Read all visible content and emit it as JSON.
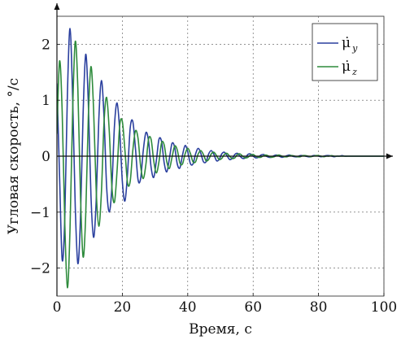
{
  "chart_data": {
    "type": "line",
    "xlabel": "Время, с",
    "ylabel": "Угловая скорость, °/с",
    "xlim": [
      0,
      100
    ],
    "ylim": [
      -2.5,
      2.5
    ],
    "x_ticks": [
      0,
      20,
      40,
      60,
      80,
      100
    ],
    "y_ticks": [
      -2,
      -1,
      0,
      1,
      2
    ],
    "x_tick_labels": [
      "0",
      "20",
      "40",
      "60",
      "80",
      "100"
    ],
    "y_tick_labels": [
      "−2",
      "−1",
      "0",
      "1",
      "2"
    ],
    "grid": true,
    "legend_position": "top-right",
    "series": [
      {
        "name": "μ̇ y",
        "legend_base": "μ̇",
        "legend_sub": "y",
        "color": "#2a3f9e",
        "x": [
          0,
          0.8,
          1.6,
          2.4,
          3.2,
          4.0,
          4.8,
          5.6,
          6.4,
          7.2,
          8.0,
          8.8,
          9.6,
          10.4,
          11.2,
          12.0,
          12.8,
          13.6,
          14.4,
          15.2,
          16.0,
          16.8,
          17.6,
          18.4,
          19.2,
          20.0,
          20.8,
          21.6,
          22.4,
          23.2,
          24.0,
          24.8,
          25.6,
          26.4,
          27.2,
          28.0,
          28.8,
          29.6,
          30.4,
          31.2,
          32.0,
          32.8,
          33.6,
          34.4,
          35.2,
          36.0,
          36.8,
          37.6,
          38.4,
          39.2,
          40.0,
          40.8,
          41.6,
          42.4,
          43.2,
          44.0,
          44.8,
          45.6,
          46.4,
          47.2,
          48.0,
          48.8,
          49.6,
          50.4,
          51.2,
          52.0,
          52.8,
          53.6,
          54.4,
          55.2,
          56.0,
          56.8,
          57.6,
          58.4,
          59.2,
          60.0,
          60.8,
          61.6,
          62.4,
          63.2,
          64.0,
          64.8,
          65.6,
          66.4,
          67.2,
          68.0,
          68.8,
          69.6,
          70.4,
          71.2,
          72.0,
          72.8,
          73.6,
          74.4,
          75.2,
          76.0,
          76.8,
          77.6,
          78.4,
          79.2,
          80.0,
          80.8,
          81.6,
          82.4,
          83.2,
          84.0,
          84.8,
          85.6,
          86.4,
          87.2,
          88.0,
          88.8,
          89.6,
          90.4,
          91.2,
          92.0,
          92.8,
          93.6,
          94.4,
          95.2,
          96.0,
          96.8,
          97.6,
          98.4,
          99.2,
          100.0
        ],
        "y": [
          1.3,
          -0.35,
          -1.85,
          -1.1,
          1.1,
          2.28,
          1.05,
          -0.9,
          -1.92,
          -1.1,
          0.75,
          1.82,
          0.95,
          -0.7,
          -1.45,
          -0.8,
          0.65,
          1.35,
          0.7,
          -0.55,
          -1.0,
          -0.55,
          0.55,
          0.95,
          0.45,
          -0.45,
          -0.8,
          -0.3,
          0.5,
          0.62,
          0.15,
          -0.42,
          -0.4,
          0.1,
          0.42,
          0.28,
          -0.2,
          -0.38,
          -0.08,
          0.3,
          0.26,
          -0.12,
          -0.28,
          -0.04,
          0.23,
          0.16,
          -0.14,
          -0.21,
          0.02,
          0.19,
          0.08,
          -0.13,
          -0.14,
          0.04,
          0.14,
          0.05,
          -0.1,
          -0.1,
          0.04,
          0.1,
          0.03,
          -0.08,
          -0.06,
          0.04,
          0.07,
          0.01,
          -0.06,
          -0.04,
          0.03,
          0.05,
          0.0,
          -0.04,
          -0.03,
          0.03,
          0.04,
          0.0,
          -0.03,
          -0.02,
          0.02,
          0.03,
          0.0,
          -0.02,
          -0.02,
          0.01,
          0.02,
          0.0,
          -0.02,
          -0.01,
          0.01,
          0.02,
          0.0,
          -0.01,
          -0.01,
          0.01,
          0.01,
          0.0,
          -0.01,
          -0.01,
          0.01,
          0.01,
          0.0,
          -0.01,
          0.0,
          0.01,
          0.01,
          0.0,
          -0.01,
          0.0,
          0.0,
          0.01,
          0.0,
          0.0,
          0.0,
          0.0,
          0.0,
          0.0,
          0.0,
          0.0,
          0.0,
          0.0,
          0.0,
          0.0,
          0.0,
          0.0,
          0.0,
          0.0
        ]
      },
      {
        "name": "μ̇ z",
        "legend_base": "μ̇",
        "legend_sub": "z",
        "color": "#2e8b3c",
        "x": [
          0,
          0.8,
          1.6,
          2.4,
          3.2,
          4.0,
          4.8,
          5.6,
          6.4,
          7.2,
          8.0,
          8.8,
          9.6,
          10.4,
          11.2,
          12.0,
          12.8,
          13.6,
          14.4,
          15.2,
          16.0,
          16.8,
          17.6,
          18.4,
          19.2,
          20.0,
          20.8,
          21.6,
          22.4,
          23.2,
          24.0,
          24.8,
          25.6,
          26.4,
          27.2,
          28.0,
          28.8,
          29.6,
          30.4,
          31.2,
          32.0,
          32.8,
          33.6,
          34.4,
          35.2,
          36.0,
          36.8,
          37.6,
          38.4,
          39.2,
          40.0,
          40.8,
          41.6,
          42.4,
          43.2,
          44.0,
          44.8,
          45.6,
          46.4,
          47.2,
          48.0,
          48.8,
          49.6,
          50.4,
          51.2,
          52.0,
          52.8,
          53.6,
          54.4,
          55.2,
          56.0,
          56.8,
          57.6,
          58.4,
          59.2,
          60.0,
          60.8,
          61.6,
          62.4,
          63.2,
          64.0,
          64.8,
          65.6,
          66.4,
          67.2,
          68.0,
          68.8,
          69.6,
          70.4,
          71.2,
          72.0,
          72.8,
          73.6,
          74.4,
          75.2,
          76.0,
          76.8,
          77.6,
          78.4,
          79.2,
          80.0,
          80.8,
          81.6,
          82.4,
          83.2,
          84.0,
          84.8,
          85.6,
          86.4,
          87.2,
          88.0,
          88.8,
          89.6,
          90.4,
          91.2,
          92.0,
          92.8,
          93.6,
          94.4,
          95.2,
          96.0,
          96.8,
          97.6,
          98.4,
          99.2,
          100.0
        ],
        "y": [
          0.4,
          1.7,
          0.8,
          -1.2,
          -2.35,
          -1.3,
          0.8,
          2.05,
          1.2,
          -0.7,
          -1.8,
          -1.05,
          0.7,
          1.6,
          0.85,
          -0.6,
          -1.25,
          -0.65,
          0.6,
          1.05,
          0.45,
          -0.55,
          -0.82,
          -0.25,
          0.55,
          0.62,
          0.1,
          -0.48,
          -0.45,
          0.1,
          0.45,
          0.32,
          -0.18,
          -0.4,
          -0.15,
          0.3,
          0.3,
          -0.08,
          -0.3,
          -0.1,
          0.24,
          0.2,
          -0.1,
          -0.22,
          -0.02,
          0.18,
          0.11,
          -0.12,
          -0.14,
          0.04,
          0.14,
          0.05,
          -0.1,
          -0.1,
          0.04,
          0.1,
          0.03,
          -0.08,
          -0.06,
          0.04,
          0.07,
          0.01,
          -0.06,
          -0.04,
          0.03,
          0.05,
          0.0,
          -0.04,
          -0.03,
          0.03,
          0.04,
          0.0,
          -0.03,
          -0.02,
          0.02,
          0.03,
          0.0,
          -0.02,
          -0.02,
          0.01,
          0.02,
          0.0,
          -0.02,
          -0.01,
          0.01,
          0.02,
          0.0,
          -0.01,
          -0.01,
          0.01,
          0.01,
          0.0,
          -0.01,
          -0.01,
          0.01,
          0.01,
          0.0,
          -0.01,
          0.0,
          0.01,
          0.01,
          0.0,
          -0.01,
          0.0,
          0.0,
          0.01,
          0.0,
          0.0,
          0.0,
          0.0,
          0.0,
          0.0,
          0.0,
          0.0,
          0.0,
          0.0,
          0.0,
          0.0,
          0.0,
          0.0,
          0.0,
          0.0,
          0.0,
          0.0,
          0.0,
          0.0
        ]
      }
    ]
  }
}
